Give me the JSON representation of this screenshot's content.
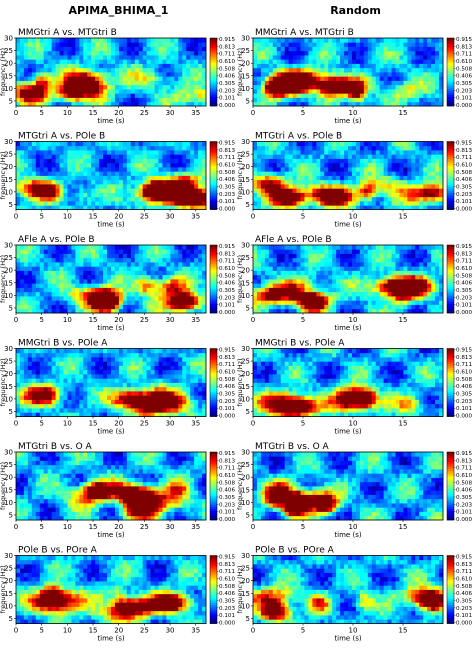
{
  "column_titles": [
    "APIMA_BHIMA_1",
    "Random"
  ],
  "colorbar_ticks": [
    "0.915",
    "0.813",
    "0.711",
    "0.610",
    "0.508",
    "0.406",
    "0.305",
    "0.203",
    "0.101",
    "0.000"
  ],
  "colormap": [
    "#00007f",
    "#0000ff",
    "#007fff",
    "#00ffff",
    "#7fff7f",
    "#ffff00",
    "#ff7f00",
    "#ff0000",
    "#7f0000"
  ],
  "chart_data": [
    {
      "type": "heatmap",
      "title": "MMGtri A vs. MTGtri B",
      "xlabel": "time (s)",
      "ylabel": "frequency (Hz)",
      "xlim": [
        0,
        37
      ],
      "ylim": [
        3,
        30
      ],
      "xticks": [
        0,
        5,
        10,
        15,
        20,
        25,
        30,
        35
      ],
      "yticks": [
        5,
        10,
        15,
        20,
        25,
        30
      ],
      "zlim": [
        0,
        0.915
      ],
      "colormap": "jet",
      "column": "APIMA_BHIMA_1"
    },
    {
      "type": "heatmap",
      "title": "MMGtri A vs. MTGtri B",
      "xlabel": "time (s)",
      "ylabel": "frequency (Hz)",
      "xlim": [
        0,
        19
      ],
      "ylim": [
        3,
        30
      ],
      "xticks": [
        0,
        5,
        10,
        15
      ],
      "yticks": [
        5,
        10,
        15,
        20,
        25,
        30
      ],
      "zlim": [
        0,
        0.915
      ],
      "colormap": "jet",
      "column": "Random"
    },
    {
      "type": "heatmap",
      "title": "MTGtri A vs. POle B",
      "xlabel": "time (s)",
      "ylabel": "frequency (Hz)",
      "xlim": [
        0,
        37
      ],
      "ylim": [
        3,
        30
      ],
      "xticks": [
        0,
        5,
        10,
        15,
        20,
        25,
        30,
        35
      ],
      "yticks": [
        5,
        10,
        15,
        20,
        25,
        30
      ],
      "zlim": [
        0,
        0.915
      ],
      "colormap": "jet",
      "column": "APIMA_BHIMA_1"
    },
    {
      "type": "heatmap",
      "title": "MTGtri A vs. POle B",
      "xlabel": "time (s)",
      "ylabel": "frequency (Hz)",
      "xlim": [
        0,
        19
      ],
      "ylim": [
        3,
        30
      ],
      "xticks": [
        0,
        5,
        10,
        15
      ],
      "yticks": [
        5,
        10,
        15,
        20,
        25,
        30
      ],
      "zlim": [
        0,
        0.915
      ],
      "colormap": "jet",
      "column": "Random"
    },
    {
      "type": "heatmap",
      "title": "AFle A vs. POle B",
      "xlabel": "time (s)",
      "ylabel": "frequency (Hz)",
      "xlim": [
        0,
        37
      ],
      "ylim": [
        3,
        30
      ],
      "xticks": [
        0,
        5,
        10,
        15,
        20,
        25,
        30,
        35
      ],
      "yticks": [
        5,
        10,
        15,
        20,
        25,
        30
      ],
      "zlim": [
        0,
        0.915
      ],
      "colormap": "jet",
      "column": "APIMA_BHIMA_1"
    },
    {
      "type": "heatmap",
      "title": "AFle A vs. POle B",
      "xlabel": "time (s)",
      "ylabel": "frequency (Hz)",
      "xlim": [
        0,
        19
      ],
      "ylim": [
        3,
        30
      ],
      "xticks": [
        0,
        5,
        10,
        15
      ],
      "yticks": [
        5,
        10,
        15,
        20,
        25,
        30
      ],
      "zlim": [
        0,
        0.915
      ],
      "colormap": "jet",
      "column": "Random"
    },
    {
      "type": "heatmap",
      "title": "MMGtri B vs. POle A",
      "xlabel": "time (s)",
      "ylabel": "frequency (Hz)",
      "xlim": [
        0,
        37
      ],
      "ylim": [
        3,
        30
      ],
      "xticks": [
        0,
        5,
        10,
        15,
        20,
        25,
        30,
        35
      ],
      "yticks": [
        5,
        10,
        15,
        20,
        25,
        30
      ],
      "zlim": [
        0,
        0.915
      ],
      "colormap": "jet",
      "column": "APIMA_BHIMA_1"
    },
    {
      "type": "heatmap",
      "title": "MMGtri B vs. POle A",
      "xlabel": "time (s)",
      "ylabel": "frequency (Hz)",
      "xlim": [
        0,
        19
      ],
      "ylim": [
        3,
        30
      ],
      "xticks": [
        0,
        5,
        10,
        15
      ],
      "yticks": [
        5,
        10,
        15,
        20,
        25,
        30
      ],
      "zlim": [
        0,
        0.915
      ],
      "colormap": "jet",
      "column": "Random"
    },
    {
      "type": "heatmap",
      "title": "MTGtri B vs. O A",
      "xlabel": "time (s)",
      "ylabel": "frequency (Hz)",
      "xlim": [
        0,
        37
      ],
      "ylim": [
        3,
        30
      ],
      "xticks": [
        0,
        5,
        10,
        15,
        20,
        25,
        30,
        35
      ],
      "yticks": [
        5,
        10,
        15,
        20,
        25,
        30
      ],
      "zlim": [
        0,
        0.915
      ],
      "colormap": "jet",
      "column": "APIMA_BHIMA_1"
    },
    {
      "type": "heatmap",
      "title": "MTGtri B vs. O A",
      "xlabel": "time (s)",
      "ylabel": "frequency (Hz)",
      "xlim": [
        0,
        19
      ],
      "ylim": [
        3,
        30
      ],
      "xticks": [
        0,
        5,
        10,
        15
      ],
      "yticks": [
        5,
        10,
        15,
        20,
        25,
        30
      ],
      "zlim": [
        0,
        0.915
      ],
      "colormap": "jet",
      "column": "Random"
    },
    {
      "type": "heatmap",
      "title": "POle B vs. POre A",
      "xlabel": "time (s)",
      "ylabel": "frequency (Hz)",
      "xlim": [
        0,
        37
      ],
      "ylim": [
        3,
        30
      ],
      "xticks": [
        0,
        5,
        10,
        15,
        20,
        25,
        30,
        35
      ],
      "yticks": [
        5,
        10,
        15,
        20,
        25,
        30
      ],
      "zlim": [
        0,
        0.915
      ],
      "colormap": "jet",
      "column": "APIMA_BHIMA_1"
    },
    {
      "type": "heatmap",
      "title": "POle B vs. POre A",
      "xlabel": "time (s)",
      "ylabel": "frequency (Hz)",
      "xlim": [
        0,
        19
      ],
      "ylim": [
        3,
        30
      ],
      "xticks": [
        0,
        5,
        10,
        15
      ],
      "yticks": [
        5,
        10,
        15,
        20,
        25,
        30
      ],
      "zlim": [
        0,
        0.915
      ],
      "colormap": "jet",
      "column": "Random"
    }
  ]
}
